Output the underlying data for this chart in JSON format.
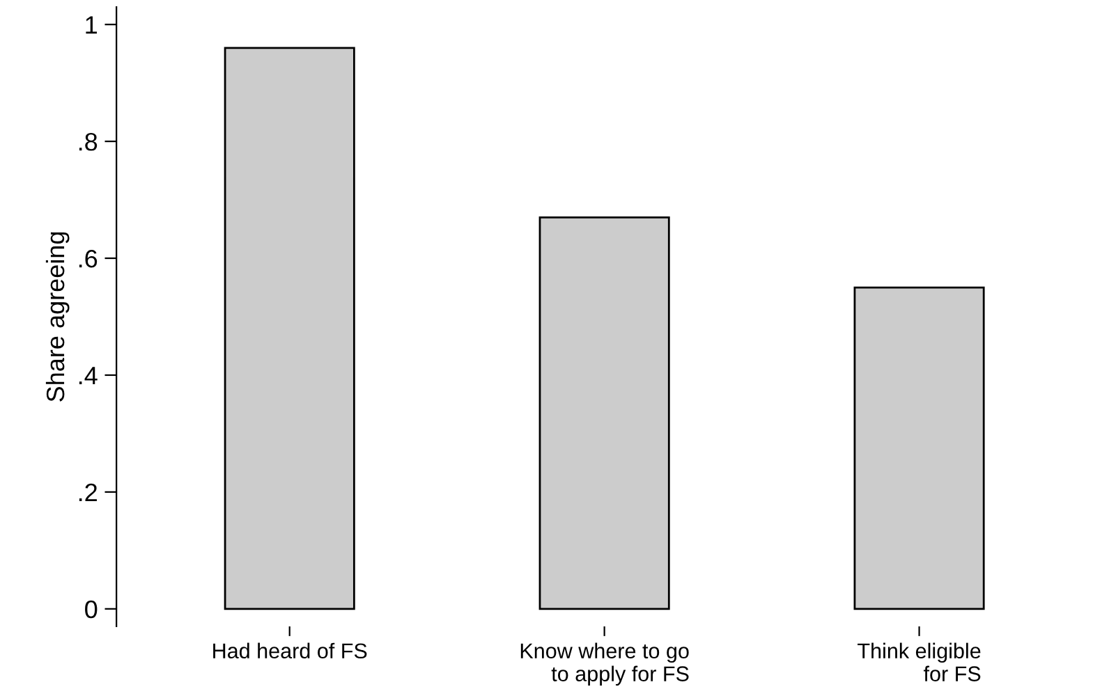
{
  "chart_data": {
    "type": "bar",
    "ylabel": "Share agreeing",
    "categories": [
      "Had heard of FS",
      "Know where to go\nto apply for FS",
      "Think eligible\nfor FS"
    ],
    "values": [
      0.96,
      0.67,
      0.55
    ],
    "color": "#cccccc",
    "ylim": [
      -0.03,
      1.03
    ],
    "yticks": [
      0,
      {
        "value": 0.2,
        "label": ".2"
      },
      {
        "value": 0.4,
        "label": ".4"
      },
      {
        "value": 0.6,
        "label": ".6"
      },
      {
        "value": 0.8,
        "label": ".8"
      },
      1
    ],
    "grid": false,
    "legend": false
  }
}
